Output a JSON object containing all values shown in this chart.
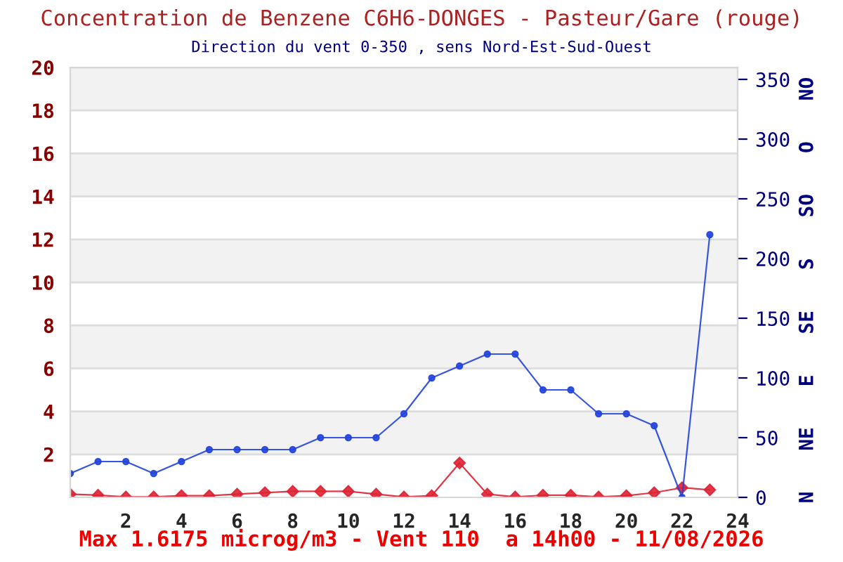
{
  "chart_data": {
    "type": "line",
    "title": "Concentration de Benzene C6H6-DONGES - Pasteur/Gare (rouge)",
    "subtitle": "Direction du vent 0-350 , sens Nord-Est-Sud-Ouest",
    "x": [
      0,
      1,
      2,
      3,
      4,
      5,
      6,
      7,
      8,
      9,
      10,
      11,
      12,
      13,
      14,
      15,
      16,
      17,
      18,
      19,
      20,
      21,
      22,
      23
    ],
    "series": [
      {
        "color": "#dd2233",
        "marker": "diamond",
        "values": [
          0.15,
          0.1,
          0.02,
          0.02,
          0.08,
          0.08,
          0.15,
          0.22,
          0.28,
          0.28,
          0.28,
          0.15,
          0.02,
          0.08,
          1.6,
          0.15,
          0.02,
          0.1,
          0.1,
          0.02,
          0.08,
          0.22,
          0.45,
          0.35
        ]
      },
      {
        "color": "#2244dd",
        "marker": "circle",
        "axis": "y2",
        "values": [
          20,
          30,
          30,
          20,
          30,
          40,
          40,
          40,
          40,
          50,
          50,
          50,
          70,
          100,
          110,
          120,
          120,
          90,
          90,
          70,
          70,
          60,
          0,
          220
        ]
      }
    ],
    "xlim": [
      0,
      24
    ],
    "xticks": [
      2,
      4,
      6,
      8,
      10,
      12,
      14,
      16,
      18,
      20,
      22,
      24
    ],
    "ylim": [
      0,
      20
    ],
    "yticks": [
      2,
      4,
      6,
      8,
      10,
      12,
      14,
      16,
      18,
      20
    ],
    "y2lim": [
      0,
      360
    ],
    "y2ticks": [
      0,
      50,
      100,
      150,
      200,
      250,
      300,
      350
    ],
    "grid": "y",
    "annotations": [
      "Max 1.6175 microg/m3 - Vent 110  a 14h00 - 11/08/2026",
      "N",
      "NE",
      "E",
      "SE",
      "S",
      "SO",
      "O",
      "NO"
    ]
  }
}
